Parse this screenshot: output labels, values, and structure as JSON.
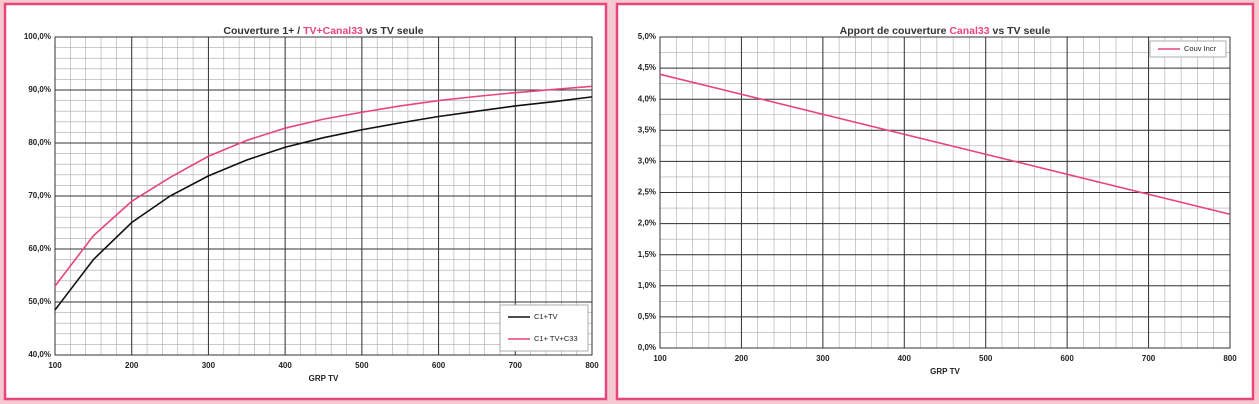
{
  "chart_data": [
    {
      "type": "line",
      "title_parts": [
        {
          "text": "Couverture 1+ / "
        },
        {
          "text": "TV+Canal33",
          "color": "#e8457a"
        },
        {
          "text": " vs TV seule"
        }
      ],
      "xlabel": "GRP TV",
      "x": [
        100,
        150,
        200,
        250,
        300,
        350,
        400,
        450,
        500,
        550,
        600,
        650,
        700,
        750,
        800
      ],
      "series": [
        {
          "name": "C1+TV",
          "color": "#111111",
          "values": [
            48.5,
            58,
            65,
            70,
            73.8,
            76.8,
            79.2,
            81,
            82.5,
            83.8,
            85,
            86,
            87,
            87.8,
            88.7
          ]
        },
        {
          "name": "C1+ TV+C33",
          "color": "#e8457a",
          "values": [
            53,
            62.5,
            69,
            73.5,
            77.5,
            80.5,
            82.8,
            84.5,
            85.8,
            87,
            88,
            88.8,
            89.5,
            90.1,
            90.7
          ]
        }
      ],
      "xlim": [
        100,
        800
      ],
      "ylim": [
        40,
        100
      ],
      "xticks": [
        100,
        200,
        300,
        400,
        500,
        600,
        700,
        800
      ],
      "yticks": [
        {
          "value": 40,
          "label": "40,0%"
        },
        {
          "value": 50,
          "label": "50,0%"
        },
        {
          "value": 60,
          "label": "60,0%"
        },
        {
          "value": 70,
          "label": "70,0%"
        },
        {
          "value": 80,
          "label": "80,0%"
        },
        {
          "value": 90,
          "label": "90,0%"
        },
        {
          "value": 100,
          "label": "100,0%"
        }
      ],
      "grid": true,
      "minor_step": {
        "x": 20,
        "y": 2
      },
      "legend": "lower-right"
    },
    {
      "type": "line",
      "title_parts": [
        {
          "text": "Apport de couverture "
        },
        {
          "text": "Canal33",
          "color": "#e8457a"
        },
        {
          "text": " vs TV seule"
        }
      ],
      "xlabel": "GRP TV",
      "x": [
        100,
        800
      ],
      "series": [
        {
          "name": "Couv Incr",
          "color": "#e8457a",
          "values": [
            4.4,
            2.15
          ]
        }
      ],
      "xlim": [
        100,
        800
      ],
      "ylim": [
        0,
        5
      ],
      "xticks": [
        100,
        200,
        300,
        400,
        500,
        600,
        700,
        800
      ],
      "yticks": [
        {
          "value": 0,
          "label": "0,0%"
        },
        {
          "value": 0.5,
          "label": "0,5%"
        },
        {
          "value": 1,
          "label": "1,0%"
        },
        {
          "value": 1.5,
          "label": "1,5%"
        },
        {
          "value": 2,
          "label": "2,0%"
        },
        {
          "value": 2.5,
          "label": "2,5%"
        },
        {
          "value": 3,
          "label": "3,0%"
        },
        {
          "value": 3.5,
          "label": "3,5%"
        },
        {
          "value": 4,
          "label": "4,0%"
        },
        {
          "value": 4.5,
          "label": "4,5%"
        },
        {
          "value": 5,
          "label": "5,0%"
        }
      ],
      "grid": true,
      "minor_step": {
        "x": 20,
        "y": 0.25
      },
      "legend": "upper-right"
    }
  ]
}
